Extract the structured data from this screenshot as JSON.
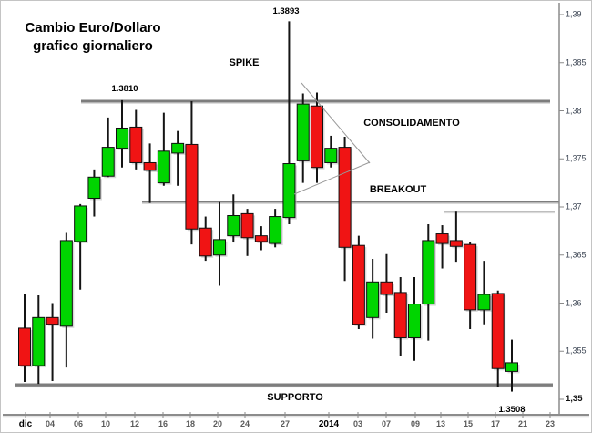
{
  "title": {
    "line1": "Cambio Euro/Dollaro",
    "line2": "grafico giornaliero"
  },
  "labels": {
    "spike": "SPIKE",
    "consolidamento": "CONSOLIDAMENTO",
    "breakout": "BREAKOUT",
    "supporto": "SUPPORTO"
  },
  "price_labels": {
    "resistance": "1.3810",
    "spike_high": "1.3893",
    "last_low": "1.3508"
  },
  "colors": {
    "bull": "#00d500",
    "bear": "#f01414",
    "wick": "#141414",
    "body_border": "#0f0f0f",
    "level_line": "#7d7d7d",
    "minor_line": "#a8a8a8",
    "triangle_line": "#999999",
    "spine": "#8c8c8c",
    "tick": "#8a8a8a"
  },
  "x_axis": {
    "ticks": [
      {
        "label": "dic",
        "strong": true
      },
      {
        "label": "04",
        "strong": false
      },
      {
        "label": "06",
        "strong": false
      },
      {
        "label": "10",
        "strong": false
      },
      {
        "label": "12",
        "strong": false
      },
      {
        "label": "16",
        "strong": false
      },
      {
        "label": "18",
        "strong": false
      },
      {
        "label": "20",
        "strong": false
      },
      {
        "label": "24",
        "strong": false
      },
      {
        "label": "27",
        "strong": false
      },
      {
        "label": "2014",
        "strong": true
      },
      {
        "label": "03",
        "strong": false
      },
      {
        "label": "07",
        "strong": false
      },
      {
        "label": "09",
        "strong": false
      },
      {
        "label": "13",
        "strong": false
      },
      {
        "label": "15",
        "strong": false
      },
      {
        "label": "17",
        "strong": false
      },
      {
        "label": "21",
        "strong": false
      },
      {
        "label": "23",
        "strong": false
      }
    ]
  },
  "y_axis": {
    "ticks": [
      {
        "label": "1,39",
        "value": 1.39,
        "strong": false
      },
      {
        "label": "1,385",
        "value": 1.385,
        "strong": false
      },
      {
        "label": "1,38",
        "value": 1.38,
        "strong": false
      },
      {
        "label": "1,375",
        "value": 1.375,
        "strong": false
      },
      {
        "label": "1,37",
        "value": 1.37,
        "strong": false
      },
      {
        "label": "1,365",
        "value": 1.365,
        "strong": false
      },
      {
        "label": "1,36",
        "value": 1.36,
        "strong": false
      },
      {
        "label": "1,355",
        "value": 1.355,
        "strong": false
      },
      {
        "label": "1,35",
        "value": 1.35,
        "strong": true
      }
    ]
  },
  "chart_data": {
    "type": "candlestick",
    "title": "Cambio Euro/Dollaro grafico giornaliero",
    "instrument": "EUR/USD",
    "timeframe": "daily",
    "ylim": [
      1.35,
      1.39
    ],
    "x_tick_labels": [
      "dic",
      "04",
      "06",
      "10",
      "12",
      "16",
      "18",
      "20",
      "24",
      "27",
      "2014",
      "03",
      "07",
      "09",
      "13",
      "15",
      "17",
      "21",
      "23"
    ],
    "levels": [
      {
        "name": "resistance",
        "price": 1.381,
        "label": "1.3810",
        "style": "thick"
      },
      {
        "name": "breakout-level",
        "price": 1.3705,
        "label": "",
        "style": "medium"
      },
      {
        "name": "minor-level",
        "price": 1.3695,
        "label": "",
        "style": "thin"
      },
      {
        "name": "support",
        "price": 1.3515,
        "label": "SUPPORTO",
        "style": "thick"
      }
    ],
    "annotations": [
      {
        "text": "SPIKE",
        "price": 1.3855,
        "note": "spike high 1.3893"
      },
      {
        "text": "CONSOLIDAMENTO",
        "price": 1.3785,
        "note": "triangle after spike"
      },
      {
        "text": "BREAKOUT",
        "price": 1.3715,
        "note": "break below triangle"
      },
      {
        "text": "SUPPORTO",
        "price": 1.3505,
        "note": "support zone, last low 1.3508"
      }
    ],
    "candles": [
      {
        "o": 1.3574,
        "h": 1.3609,
        "l": 1.3518,
        "c": 1.3535
      },
      {
        "o": 1.3535,
        "h": 1.3608,
        "l": 1.3516,
        "c": 1.3585
      },
      {
        "o": 1.3585,
        "h": 1.36,
        "l": 1.3519,
        "c": 1.3578
      },
      {
        "o": 1.3576,
        "h": 1.3673,
        "l": 1.3533,
        "c": 1.3665
      },
      {
        "o": 1.3664,
        "h": 1.3703,
        "l": 1.3614,
        "c": 1.3701
      },
      {
        "o": 1.3709,
        "h": 1.3739,
        "l": 1.369,
        "c": 1.3731
      },
      {
        "o": 1.3732,
        "h": 1.3793,
        "l": 1.3731,
        "c": 1.3762
      },
      {
        "o": 1.3761,
        "h": 1.3811,
        "l": 1.3741,
        "c": 1.3782
      },
      {
        "o": 1.3783,
        "h": 1.3801,
        "l": 1.3739,
        "c": 1.3746
      },
      {
        "o": 1.3746,
        "h": 1.3766,
        "l": 1.3704,
        "c": 1.3738
      },
      {
        "o": 1.3725,
        "h": 1.3798,
        "l": 1.3722,
        "c": 1.3758
      },
      {
        "o": 1.3756,
        "h": 1.3779,
        "l": 1.3722,
        "c": 1.3766
      },
      {
        "o": 1.3765,
        "h": 1.381,
        "l": 1.3661,
        "c": 1.3677
      },
      {
        "o": 1.3678,
        "h": 1.369,
        "l": 1.3644,
        "c": 1.3649
      },
      {
        "o": 1.365,
        "h": 1.3705,
        "l": 1.3618,
        "c": 1.3666
      },
      {
        "o": 1.367,
        "h": 1.3713,
        "l": 1.3663,
        "c": 1.3691
      },
      {
        "o": 1.3693,
        "h": 1.3698,
        "l": 1.3649,
        "c": 1.3668
      },
      {
        "o": 1.367,
        "h": 1.368,
        "l": 1.3655,
        "c": 1.3664
      },
      {
        "o": 1.3662,
        "h": 1.3698,
        "l": 1.3658,
        "c": 1.369
      },
      {
        "o": 1.3689,
        "h": 1.3893,
        "l": 1.3682,
        "c": 1.3745
      },
      {
        "o": 1.3748,
        "h": 1.3818,
        "l": 1.3725,
        "c": 1.3807
      },
      {
        "o": 1.3805,
        "h": 1.3819,
        "l": 1.3725,
        "c": 1.3741
      },
      {
        "o": 1.3746,
        "h": 1.3774,
        "l": 1.3741,
        "c": 1.3761
      },
      {
        "o": 1.3762,
        "h": 1.3773,
        "l": 1.3623,
        "c": 1.3658
      },
      {
        "o": 1.366,
        "h": 1.367,
        "l": 1.3573,
        "c": 1.3578
      },
      {
        "o": 1.3585,
        "h": 1.3646,
        "l": 1.3563,
        "c": 1.3622
      },
      {
        "o": 1.3622,
        "h": 1.3651,
        "l": 1.359,
        "c": 1.3609
      },
      {
        "o": 1.3611,
        "h": 1.3627,
        "l": 1.3545,
        "c": 1.3564
      },
      {
        "o": 1.3564,
        "h": 1.3627,
        "l": 1.354,
        "c": 1.3599
      },
      {
        "o": 1.3599,
        "h": 1.3682,
        "l": 1.3561,
        "c": 1.3665
      },
      {
        "o": 1.3672,
        "h": 1.3681,
        "l": 1.3636,
        "c": 1.3662
      },
      {
        "o": 1.3665,
        "h": 1.3695,
        "l": 1.3643,
        "c": 1.3659
      },
      {
        "o": 1.3661,
        "h": 1.3663,
        "l": 1.3573,
        "c": 1.3593
      },
      {
        "o": 1.3593,
        "h": 1.3644,
        "l": 1.3578,
        "c": 1.3609
      },
      {
        "o": 1.361,
        "h": 1.3613,
        "l": 1.3513,
        "c": 1.3532
      },
      {
        "o": 1.3529,
        "h": 1.3562,
        "l": 1.3508,
        "c": 1.3538
      }
    ]
  }
}
